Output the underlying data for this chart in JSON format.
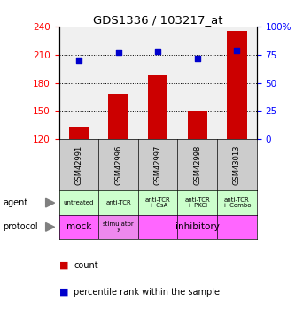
{
  "title": "GDS1336 / 103217_at",
  "samples": [
    "GSM42991",
    "GSM42996",
    "GSM42997",
    "GSM42998",
    "GSM43013"
  ],
  "bar_values": [
    133,
    168,
    188,
    150,
    235
  ],
  "bar_bottom": 120,
  "percentile_values": [
    70,
    77,
    78,
    72,
    79
  ],
  "bar_color": "#cc0000",
  "percentile_color": "#0000cc",
  "ylim_left": [
    120,
    240
  ],
  "ylim_right": [
    0,
    100
  ],
  "yticks_left": [
    120,
    150,
    180,
    210,
    240
  ],
  "yticks_right": [
    0,
    25,
    50,
    75,
    100
  ],
  "agent_labels": [
    "untreated",
    "anti-TCR",
    "anti-TCR\n+ CsA",
    "anti-TCR\n+ PKCi",
    "anti-TCR\n+ Combo"
  ],
  "agent_color": "#ccffcc",
  "protocol_color": "#ff66ff",
  "protocol_mock_color": "#ff66ff",
  "protocol_stim_color": "#ee88ee",
  "sample_box_color": "#cccccc",
  "background_color": "#ffffff",
  "legend_count_color": "#cc0000",
  "legend_pct_color": "#0000cc",
  "grid_color": "#000000",
  "right_tick_labels": [
    "0",
    "25",
    "50",
    "75",
    "100%"
  ]
}
